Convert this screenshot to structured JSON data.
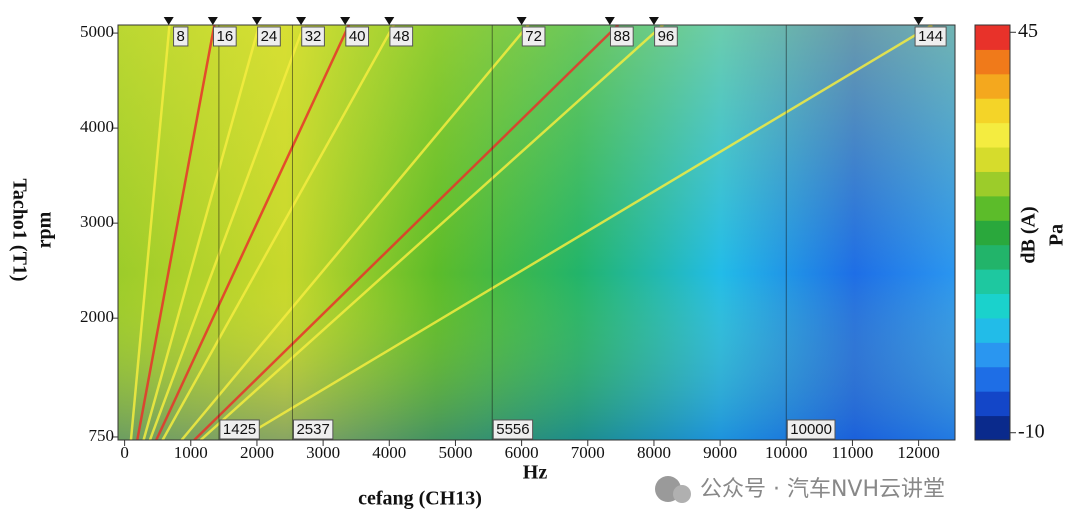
{
  "chart_data": {
    "type": "order-map",
    "x_label": "Hz",
    "x_sublabel": "cefang (CH13)",
    "y_label": "Tacho1 (T1)",
    "y_sublabel": "rpm",
    "colorbar_label": "dB (A)",
    "colorbar_unit": "Pa",
    "xlim": [
      -100,
      12550
    ],
    "xticks": [
      0,
      1000,
      2000,
      3000,
      4000,
      5000,
      6000,
      7000,
      8000,
      9000,
      10000,
      11000,
      12000
    ],
    "ylim": [
      718,
      5085
    ],
    "yticks": [
      750,
      2000,
      3000,
      4000,
      5000
    ],
    "zlim": [
      -11,
      46
    ],
    "zticks": [
      -10,
      45
    ],
    "colormap": [
      "#0a2a8c",
      "#1346c8",
      "#1e6ee6",
      "#2a96f0",
      "#22bce8",
      "#1ad2cc",
      "#1ec8a0",
      "#22b46a",
      "#2aa83c",
      "#5cbc2a",
      "#9ccc2a",
      "#d6dc2c",
      "#f4ec40",
      "#f4d428",
      "#f4a81e",
      "#f07a1a",
      "#e8322a"
    ],
    "orders": [
      8,
      16,
      24,
      32,
      40,
      48,
      72,
      88,
      96,
      144
    ],
    "frequency_markers": [
      1425,
      2537,
      5556,
      10000
    ],
    "watermark": "公众号 · 汽车NVH云讲堂"
  }
}
